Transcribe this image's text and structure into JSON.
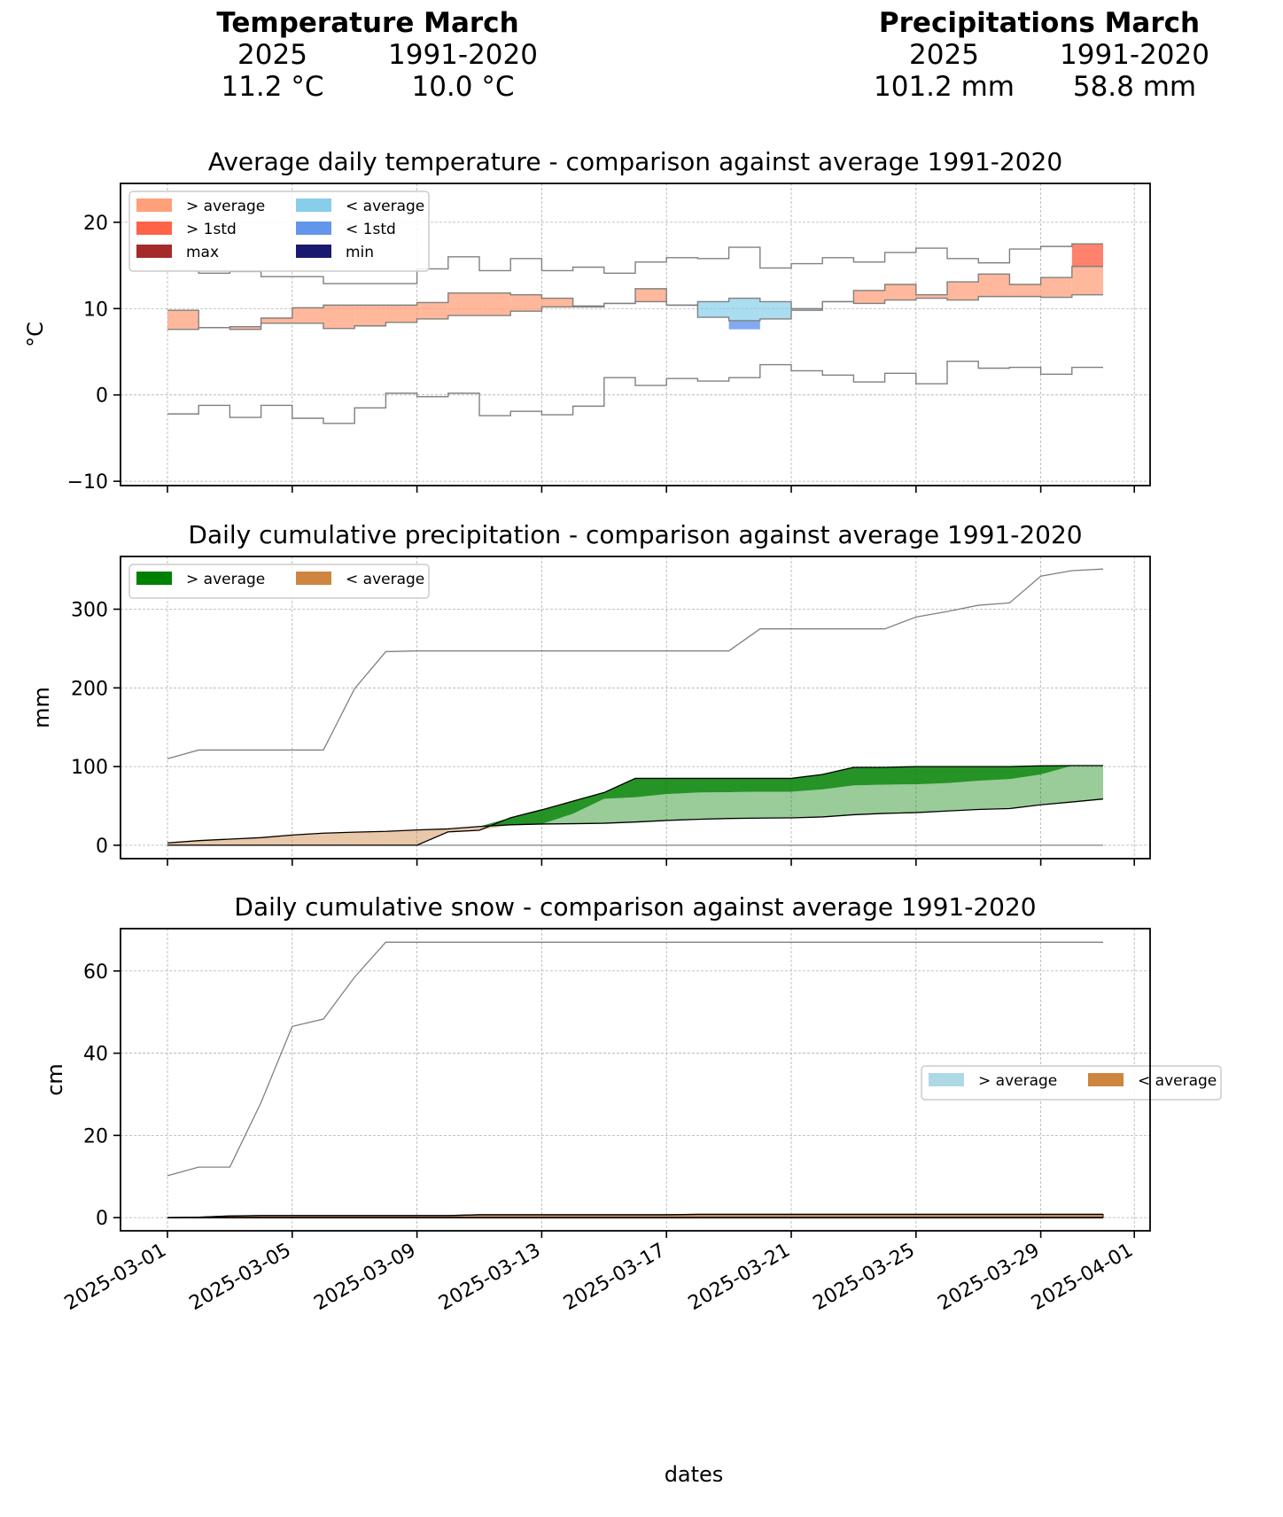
{
  "summary": {
    "temperature": {
      "title": "Temperature March",
      "col1_label": "2025",
      "col2_label": "1991-2020",
      "col1_value": "11.2 °C",
      "col2_value": "10.0 °C"
    },
    "precipitation": {
      "title": "Precipitations March",
      "col1_label": "2025",
      "col2_label": "1991-2020",
      "col1_value": "101.2 mm",
      "col2_value": "58.8 mm"
    }
  },
  "colors": {
    "above_avg_temp": "#ffa07a",
    "above_1std_temp": "#ff6347",
    "max_temp": "#a52a2a",
    "below_avg_temp": "#87ceeb",
    "below_1std_temp": "#6495ed",
    "min_temp": "#191970",
    "precip_above": "#008000",
    "precip_below": "#cd853f",
    "snow_above": "#add8e6",
    "snow_below": "#cd853f",
    "line_gray": "#808080"
  },
  "chart_data": [
    {
      "type": "area",
      "title": "Average daily temperature - comparison against average 1991-2020",
      "xlabel": "",
      "ylabel": "°C",
      "ylim": [
        -10.5,
        24.5
      ],
      "yticks": [
        -10,
        0,
        10,
        20
      ],
      "ytick_labels": [
        "−10",
        "0",
        "10",
        "20"
      ],
      "grid": true,
      "legend": {
        "placement": "top-left",
        "columns": 2,
        "entries": [
          {
            "label": "> average",
            "color_key": "above_avg_temp"
          },
          {
            "label": "> 1std",
            "color_key": "above_1std_temp"
          },
          {
            "label": "max",
            "color_key": "max_temp"
          },
          {
            "label": "< average",
            "color_key": "below_avg_temp"
          },
          {
            "label": "< 1std",
            "color_key": "below_1std_temp"
          },
          {
            "label": "min",
            "color_key": "min_temp"
          }
        ]
      },
      "x_start_day": 1,
      "step": "post",
      "series": [
        {
          "name": "record max",
          "values": [
            14.4,
            14.1,
            14.3,
            13.7,
            13.7,
            12.9,
            12.9,
            12.9,
            14.6,
            16.0,
            14.4,
            15.8,
            14.4,
            14.8,
            14.1,
            15.4,
            15.9,
            15.8,
            17.1,
            14.7,
            15.2,
            15.9,
            15.4,
            16.5,
            17.0,
            15.8,
            15.3,
            16.9,
            17.2,
            17.5
          ]
        },
        {
          "name": "record min",
          "values": [
            -2.2,
            -1.2,
            -2.6,
            -1.2,
            -2.7,
            -3.3,
            -1.5,
            0.2,
            -0.2,
            0.2,
            -2.4,
            -1.9,
            -2.3,
            -1.3,
            2.0,
            1.1,
            1.9,
            1.6,
            2.0,
            3.5,
            2.8,
            2.3,
            1.5,
            2.5,
            1.3,
            3.9,
            3.1,
            3.2,
            2.4,
            3.2
          ]
        },
        {
          "name": "average 1991-2020",
          "values": [
            7.6,
            7.8,
            7.6,
            8.3,
            8.3,
            7.7,
            8.0,
            8.4,
            8.8,
            9.2,
            9.2,
            9.7,
            10.2,
            10.3,
            10.6,
            10.8,
            10.4,
            10.8,
            11.2,
            10.8,
            10.0,
            10.8,
            10.6,
            11.0,
            11.2,
            11.0,
            11.4,
            11.4,
            11.3,
            11.6
          ]
        },
        {
          "name": "2025 daily mean",
          "values": [
            9.8,
            7.8,
            7.9,
            8.9,
            10.1,
            10.4,
            10.4,
            10.4,
            10.7,
            11.8,
            11.8,
            11.6,
            11.2,
            10.2,
            10.6,
            12.3,
            10.4,
            9.0,
            8.6,
            8.8,
            9.8,
            10.8,
            12.1,
            12.8,
            11.6,
            13.1,
            14.0,
            12.8,
            13.6,
            14.9
          ]
        },
        {
          "name": "upper 1std",
          "values": [
            17.5,
            17.5,
            17.5,
            17.5,
            17.5,
            17.5,
            17.5,
            17.5,
            17.5,
            17.5,
            17.5,
            17.5,
            17.5,
            17.5,
            17.5,
            17.5,
            17.5,
            17.5,
            17.5,
            17.5,
            17.5,
            17.5,
            17.5,
            17.5,
            17.5,
            17.5,
            17.5,
            17.5,
            14.8,
            14.8
          ]
        },
        {
          "name": "lower 1std",
          "values": [
            5,
            5,
            5,
            5,
            5,
            5,
            5,
            5,
            5,
            5,
            5,
            5,
            5,
            5,
            5,
            5,
            5,
            8.6,
            8.6,
            8.6,
            8.6,
            5,
            5,
            5,
            5,
            5,
            5,
            5,
            5,
            5
          ]
        }
      ],
      "highlights": [
        {
          "day": 30,
          "from": 14.8,
          "to": 17.5,
          "type": "above_1std"
        },
        {
          "day": 19,
          "from": 7.6,
          "to": 8.6,
          "type": "below_1std"
        }
      ]
    },
    {
      "type": "area",
      "title": "Daily cumulative precipitation - comparison against average 1991-2020",
      "xlabel": "",
      "ylabel": "mm",
      "ylim": [
        -17,
        367
      ],
      "yticks": [
        0,
        100,
        200,
        300
      ],
      "ytick_labels": [
        "0",
        "100",
        "200",
        "300"
      ],
      "grid": true,
      "legend": {
        "placement": "top-left",
        "columns": 2,
        "entries": [
          {
            "label": "> average",
            "color_key": "precip_above"
          },
          {
            "label": "< average",
            "color_key": "precip_below"
          }
        ]
      },
      "x_days": [
        1,
        2,
        3,
        4,
        5,
        6,
        7,
        8,
        9,
        10,
        11,
        12,
        13,
        14,
        15,
        16,
        17,
        18,
        19,
        20,
        21,
        22,
        23,
        24,
        25,
        26,
        27,
        28,
        29,
        30,
        31
      ],
      "series": [
        {
          "name": "2025 cumulative",
          "values": [
            0,
            0,
            0,
            0,
            0,
            0,
            0,
            0,
            0,
            17,
            19,
            35,
            45,
            56,
            67,
            85,
            85,
            85,
            85,
            85,
            85,
            90,
            99,
            99,
            100,
            100,
            100,
            100,
            101,
            101.2,
            101.2
          ]
        },
        {
          "name": "average 1991-2020",
          "values": [
            3,
            5.9,
            7.8,
            9.7,
            13,
            15.4,
            16.6,
            17.6,
            19.5,
            20.8,
            23.8,
            26,
            27,
            27.4,
            28,
            29.5,
            31.5,
            33,
            34,
            34.5,
            34.8,
            36,
            38.8,
            40.5,
            41.5,
            43.5,
            45.5,
            46.6,
            51.4,
            55,
            58.8
          ]
        },
        {
          "name": "1std upper",
          "values": [
            3,
            5.9,
            7.8,
            9.7,
            13,
            15.4,
            16.6,
            17.6,
            19.5,
            20.8,
            23.8,
            26,
            27,
            40,
            59,
            61,
            65,
            67,
            67.5,
            68,
            68,
            71,
            76,
            77,
            77.5,
            79,
            82,
            84,
            90,
            101,
            101.2
          ]
        },
        {
          "name": "record max",
          "values": [
            110,
            121,
            121,
            121,
            121,
            121,
            199,
            246,
            247,
            247,
            247,
            247,
            247,
            247,
            247,
            247,
            247,
            247,
            247,
            275,
            275,
            275,
            275,
            275,
            290,
            297,
            305,
            308,
            342,
            349,
            351
          ]
        },
        {
          "name": "record min",
          "values": [
            0,
            0,
            0,
            0,
            0,
            0,
            0,
            0,
            0,
            0,
            0,
            0,
            0,
            0,
            0,
            0,
            0,
            0,
            0,
            0,
            0,
            0,
            0,
            0,
            0,
            0,
            0,
            0,
            0,
            0,
            0
          ]
        }
      ]
    },
    {
      "type": "area",
      "title": "Daily cumulative snow - comparison against average 1991-2020",
      "xlabel": "dates",
      "ylabel": "cm",
      "ylim": [
        -3.2,
        70.3
      ],
      "yticks": [
        0,
        20,
        40,
        60
      ],
      "ytick_labels": [
        "0",
        "20",
        "40",
        "60"
      ],
      "grid": true,
      "legend": {
        "placement": "center-right",
        "columns": 2,
        "entries": [
          {
            "label": "> average",
            "color_key": "snow_above"
          },
          {
            "label": "< average",
            "color_key": "snow_below"
          }
        ]
      },
      "x_days": [
        1,
        2,
        3,
        4,
        5,
        6,
        7,
        8,
        9,
        10,
        11,
        12,
        13,
        14,
        15,
        16,
        17,
        18,
        19,
        20,
        21,
        22,
        23,
        24,
        25,
        26,
        27,
        28,
        29,
        30,
        31
      ],
      "series": [
        {
          "name": "2025 cumulative",
          "values": [
            0,
            0,
            0,
            0,
            0,
            0,
            0,
            0,
            0,
            0,
            0,
            0,
            0,
            0,
            0,
            0,
            0,
            0,
            0,
            0,
            0,
            0,
            0,
            0,
            0,
            0,
            0,
            0,
            0,
            0,
            0
          ]
        },
        {
          "name": "average 1991-2020",
          "values": [
            0,
            0.1,
            0.4,
            0.5,
            0.5,
            0.5,
            0.5,
            0.5,
            0.5,
            0.5,
            0.7,
            0.7,
            0.7,
            0.7,
            0.7,
            0.7,
            0.7,
            0.8,
            0.8,
            0.8,
            0.8,
            0.8,
            0.8,
            0.8,
            0.8,
            0.8,
            0.8,
            0.8,
            0.8,
            0.8,
            0.8
          ]
        },
        {
          "name": "record max",
          "values": [
            10.2,
            12.3,
            12.3,
            28,
            46.5,
            48.3,
            58.5,
            67,
            67,
            67,
            67,
            67,
            67,
            67,
            67,
            67,
            67,
            67,
            67,
            67,
            67,
            67,
            67,
            67,
            67,
            67,
            67,
            67,
            67,
            67,
            67
          ]
        }
      ],
      "xticks": [
        "2025-03-01",
        "2025-03-05",
        "2025-03-09",
        "2025-03-13",
        "2025-03-17",
        "2025-03-21",
        "2025-03-25",
        "2025-03-29",
        "2025-04-01"
      ]
    }
  ]
}
